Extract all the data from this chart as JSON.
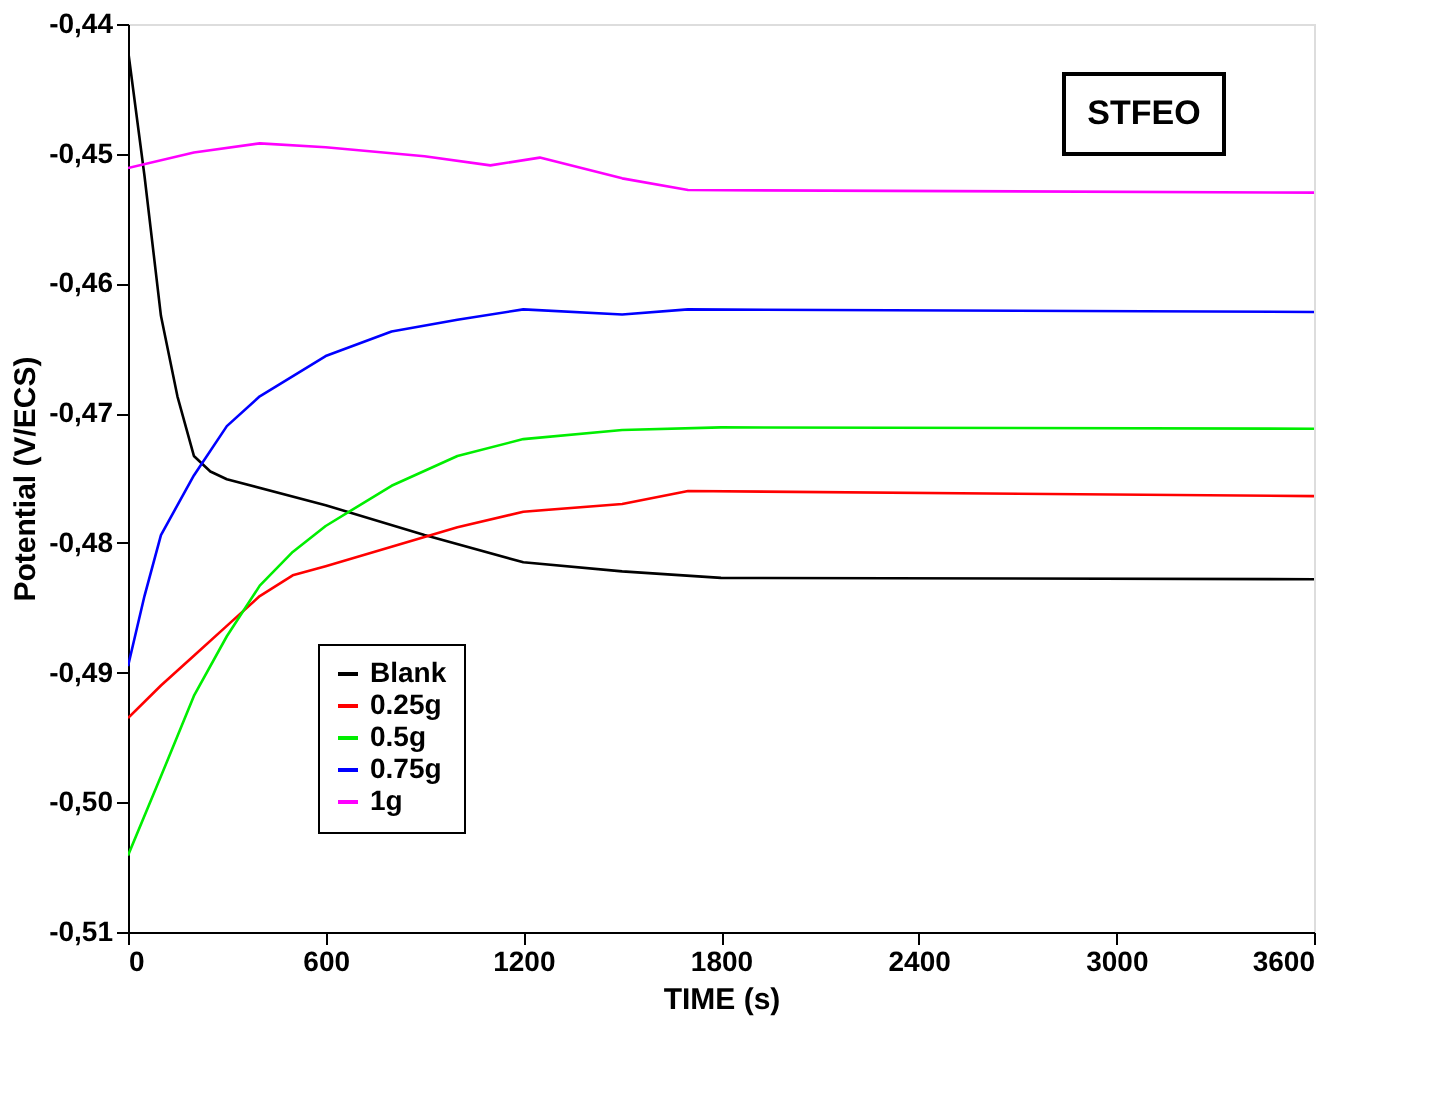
{
  "chart_data": {
    "type": "line",
    "xlabel": "TIME (s)",
    "ylabel": "Potential (V/ECS)",
    "annotations": [
      "STFEO"
    ],
    "xlim": [
      0,
      3600
    ],
    "xticks": [
      0,
      600,
      1200,
      1800,
      2400,
      3000,
      3600
    ],
    "ylim": [
      -0.51,
      -0.44
    ],
    "yticks": [
      {
        "value": -0.51,
        "label": "-0,51"
      },
      {
        "value": -0.5,
        "label": "-0,50"
      },
      {
        "value": -0.49,
        "label": "-0,49"
      },
      {
        "value": -0.48,
        "label": "-0,48"
      },
      {
        "value": -0.47,
        "label": "-0,47"
      },
      {
        "value": -0.46,
        "label": "-0,46"
      },
      {
        "value": -0.45,
        "label": "-0,45"
      },
      {
        "value": -0.44,
        "label": "-0,44"
      }
    ],
    "grid": false,
    "legend": "bottom left",
    "marker": "none",
    "line_style": "solid",
    "series": [
      {
        "name": "Blank",
        "color": "#000000",
        "x": [
          0,
          50,
          100,
          150,
          200,
          250,
          300,
          600,
          900,
          1200,
          1500,
          1800,
          3600
        ],
        "values": [
          -0.442,
          -0.4517,
          -0.4625,
          -0.4687,
          -0.4733,
          -0.4745,
          -0.4751,
          -0.4771,
          -0.4794,
          -0.4815,
          -0.4822,
          -0.4827,
          -0.4828
        ]
      },
      {
        "name": "0.25g",
        "color": "#ff0000",
        "x": [
          0,
          100,
          200,
          300,
          400,
          500,
          600,
          800,
          1000,
          1200,
          1500,
          1700,
          3600
        ],
        "values": [
          -0.4935,
          -0.491,
          -0.4887,
          -0.4864,
          -0.4841,
          -0.4825,
          -0.4818,
          -0.4803,
          -0.4788,
          -0.4776,
          -0.477,
          -0.476,
          -0.4764
        ]
      },
      {
        "name": "0.5g",
        "color": "#00ee00",
        "x": [
          0,
          100,
          200,
          300,
          400,
          500,
          600,
          800,
          1000,
          1200,
          1500,
          1800,
          3600
        ],
        "values": [
          -0.5041,
          -0.498,
          -0.4918,
          -0.4872,
          -0.4833,
          -0.4807,
          -0.4787,
          -0.4756,
          -0.4733,
          -0.472,
          -0.4713,
          -0.4711,
          -0.4712
        ]
      },
      {
        "name": "0.75g",
        "color": "#0000ff",
        "x": [
          0,
          50,
          100,
          200,
          300,
          400,
          600,
          800,
          1000,
          1200,
          1500,
          1700,
          3600
        ],
        "values": [
          -0.4895,
          -0.4841,
          -0.4794,
          -0.4748,
          -0.471,
          -0.4687,
          -0.4656,
          -0.4637,
          -0.4628,
          -0.462,
          -0.4624,
          -0.462,
          -0.4622
        ]
      },
      {
        "name": "1g",
        "color": "#ff00ff",
        "x": [
          0,
          200,
          400,
          600,
          900,
          1100,
          1250,
          1500,
          1700,
          3600
        ],
        "values": [
          -0.4511,
          -0.4499,
          -0.4492,
          -0.4495,
          -0.4502,
          -0.4509,
          -0.4503,
          -0.4519,
          -0.4528,
          -0.453
        ]
      }
    ]
  }
}
